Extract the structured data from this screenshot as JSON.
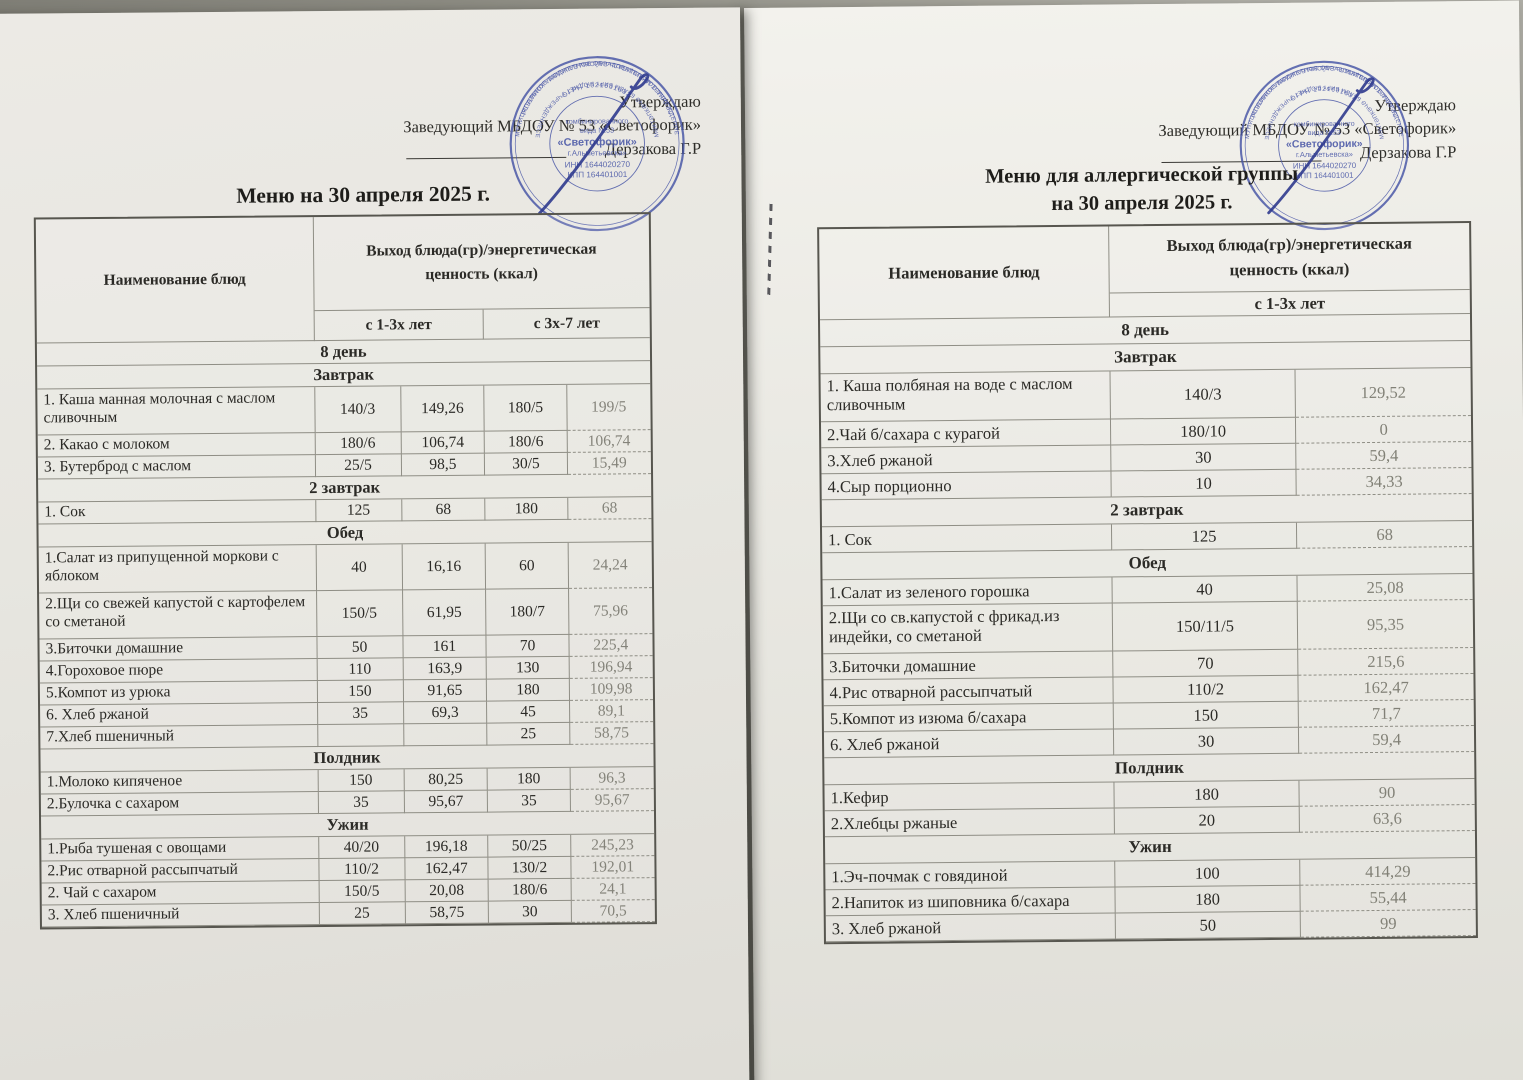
{
  "colors": {
    "background": "#8b8a81",
    "paper": "#eae9e4",
    "stamp_blue": "#4553a5",
    "signature_blue": "#2f3a8e",
    "faded_print": "#84837a"
  },
  "left_doc": {
    "approval": {
      "label": "Утверждаю",
      "position": "Заведующий МБДОУ № 53 «Светофорик»",
      "signer": "Дерзакова Г.Р"
    },
    "title": "Меню на 30 апреля 2025 г.",
    "table": {
      "name_header": "Наименование блюд",
      "output_header": "Выход блюда(гр)/энергетическая ценность (ккал)",
      "age_columns": [
        "с 1-3х лет",
        "с 3х-7 лет"
      ],
      "rows": [
        {
          "type": "section",
          "label": "8  день"
        },
        {
          "type": "section",
          "label": "Завтрак"
        },
        {
          "type": "item",
          "name": "1. Каша манная молочная с маслом сливочным",
          "values": [
            "140/3",
            "149,26",
            "180/5",
            "199/5"
          ]
        },
        {
          "type": "item",
          "name": "2. Какао с молоком",
          "values": [
            "180/6",
            "106,74",
            "180/6",
            "106,74"
          ]
        },
        {
          "type": "item",
          "name": "3. Бутерброд с маслом",
          "values": [
            "25/5",
            "98,5",
            "30/5",
            "15,49"
          ]
        },
        {
          "type": "section",
          "label": "2  завтрак"
        },
        {
          "type": "item",
          "name": "1. Сок",
          "values": [
            "125",
            "68",
            "180",
            "68"
          ]
        },
        {
          "type": "section",
          "label": "Обед"
        },
        {
          "type": "item",
          "name": "1.Салат из припущенной моркови с яблоком",
          "values": [
            "40",
            "16,16",
            "60",
            "24,24"
          ]
        },
        {
          "type": "item",
          "name": "2.Щи со свежей капустой с картофелем со сметаной",
          "values": [
            "150/5",
            "61,95",
            "180/7",
            "75,96"
          ]
        },
        {
          "type": "item",
          "name": "3.Биточки домашние",
          "values": [
            "50",
            "161",
            "70",
            "225,4"
          ]
        },
        {
          "type": "item",
          "name": "4.Гороховое пюре",
          "values": [
            "110",
            "163,9",
            "130",
            "196,94"
          ]
        },
        {
          "type": "item",
          "name": "5.Компот из урюка",
          "values": [
            "150",
            "91,65",
            "180",
            "109,98"
          ]
        },
        {
          "type": "item",
          "name": "6. Хлеб ржаной",
          "values": [
            "35",
            "69,3",
            "45",
            "89,1"
          ]
        },
        {
          "type": "item",
          "name": "7.Хлеб пшеничный",
          "values": [
            "",
            "",
            "25",
            "58,75"
          ]
        },
        {
          "type": "section",
          "label": "Полдник"
        },
        {
          "type": "item",
          "name": "1.Молоко кипяченое",
          "values": [
            "150",
            "80,25",
            "180",
            "96,3"
          ]
        },
        {
          "type": "item",
          "name": "2.Булочка с сахаром",
          "values": [
            "35",
            "95,67",
            "35",
            "95,67"
          ]
        },
        {
          "type": "section",
          "label": "Ужин"
        },
        {
          "type": "item",
          "name": "1.Рыба тушеная с овощами",
          "values": [
            "40/20",
            "196,18",
            "50/25",
            "245,23"
          ]
        },
        {
          "type": "item",
          "name": "2.Рис отварной рассыпчатый",
          "values": [
            "110/2",
            "162,47",
            "130/2",
            "192,01"
          ]
        },
        {
          "type": "item",
          "name": "2. Чай с сахаром",
          "values": [
            "150/5",
            "20,08",
            "180/6",
            "24,1"
          ]
        },
        {
          "type": "item",
          "name": "3. Хлеб пшеничный",
          "values": [
            "25",
            "58,75",
            "30",
            "70,5"
          ]
        }
      ]
    }
  },
  "right_doc": {
    "approval": {
      "label": "Утверждаю",
      "position": "Заведующий МБДОУ № 53 «Светофорик»",
      "signer": "Дерзакова Г.Р"
    },
    "title_line1": "Меню для аллергической группы",
    "title_line2": "на 30 апреля 2025 г.",
    "table": {
      "name_header": "Наименование блюд",
      "output_header": "Выход блюда(гр)/энергетическая ценность (ккал)",
      "age_columns": [
        "с 1-3х лет"
      ],
      "rows": [
        {
          "type": "section",
          "label": "8  день"
        },
        {
          "type": "section",
          "label": "Завтрак"
        },
        {
          "type": "item",
          "name": "1. Каша полбяная на воде с маслом сливочным",
          "values": [
            "140/3",
            "129,52"
          ]
        },
        {
          "type": "item",
          "name": "2.Чай б/сахара с курагой",
          "values": [
            "180/10",
            "0"
          ]
        },
        {
          "type": "item",
          "name": "3.Хлеб ржаной",
          "values": [
            "30",
            "59,4"
          ]
        },
        {
          "type": "item",
          "name": "4.Сыр порционно",
          "values": [
            "10",
            "34,33"
          ]
        },
        {
          "type": "section",
          "label": "2  завтрак"
        },
        {
          "type": "item",
          "name": "1. Сок",
          "values": [
            "125",
            "68"
          ]
        },
        {
          "type": "section",
          "label": "Обед"
        },
        {
          "type": "item",
          "name": "1.Салат из зеленого горошка",
          "values": [
            "40",
            "25,08"
          ]
        },
        {
          "type": "item",
          "name": "2.Щи со св.капустой с фрикад.из индейки, со сметаной",
          "values": [
            "150/11/5",
            "95,35"
          ]
        },
        {
          "type": "item",
          "name": "3.Биточки домашние",
          "values": [
            "70",
            "215,6"
          ]
        },
        {
          "type": "item",
          "name": "4.Рис отварной рассыпчатый",
          "values": [
            "110/2",
            "162,47"
          ]
        },
        {
          "type": "item",
          "name": "5.Компот из изюма б/сахара",
          "values": [
            "150",
            "71,7"
          ]
        },
        {
          "type": "item",
          "name": "6. Хлеб ржаной",
          "values": [
            "30",
            "59,4"
          ]
        },
        {
          "type": "section",
          "label": "Полдник"
        },
        {
          "type": "item",
          "name": "1.Кефир",
          "values": [
            "180",
            "90"
          ]
        },
        {
          "type": "item",
          "name": "2.Хлебцы ржаные",
          "values": [
            "20",
            "63,6"
          ]
        },
        {
          "type": "section",
          "label": "Ужин"
        },
        {
          "type": "item",
          "name": "1.Эч-почмак с говядиной",
          "values": [
            "100",
            "414,29"
          ]
        },
        {
          "type": "item",
          "name": "2.Напиток из шиповника б/сахара",
          "values": [
            "180",
            "55,44"
          ]
        },
        {
          "type": "item",
          "name": "3. Хлеб ржаной",
          "values": [
            "50",
            "99"
          ]
        }
      ]
    }
  },
  "stamp": {
    "ring_outer_top": "МУНИЦИПАЛЬНОЕ БЮДЖЕТНОЕ ОБРАЗОВАТЕЛЬНОЕ УЧРЕЖДЕНИЕ",
    "ring_inner_top": "ОГРН 1021601632",
    "ring_outer_bottom": "ТР ӘЛМӘТ МУНИЦИПАЛЬ РАЙОНЫ БАШКАРМА КОМИТЕТЫ",
    "ring_inner_bottom": "МӘКТӘПКӘЧӘ БЕЛЕМ БИРҮ БЮДЖЕТ УЧРЕЖДЕНИЕСЕ",
    "center_lines": [
      "комбинированного",
      "вида №53",
      "«Светофорик»",
      "г.Альметьевска»",
      "ИНН 1644020270",
      "КПП 164401001"
    ]
  }
}
